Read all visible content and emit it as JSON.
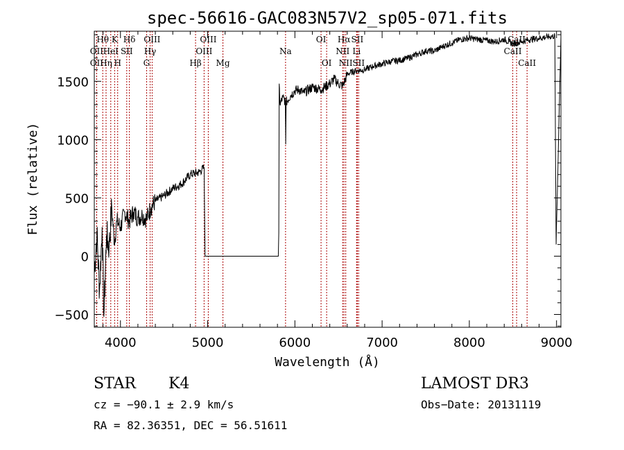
{
  "chart_data": {
    "type": "line",
    "title": "spec-56616-GAC083N57V2_sp05-071.fits",
    "xlabel": "Wavelength (Å)",
    "ylabel": "Flux (relative)",
    "xlim": [
      3700,
      9050
    ],
    "ylim": [
      -610,
      1930
    ],
    "x_ticks": [
      4000,
      5000,
      6000,
      7000,
      8000,
      9000
    ],
    "y_ticks": [
      -500,
      0,
      500,
      1000,
      1500
    ],
    "x_tick_labels": [
      "4000",
      "5000",
      "6000",
      "7000",
      "8000",
      "9000"
    ],
    "y_tick_labels": [
      "−500",
      "0",
      "500",
      "1000",
      "1500"
    ],
    "line_color": "#000000",
    "marker_color": "#aa0000",
    "spectrum_anchors": [
      [
        3700,
        -150
      ],
      [
        3730,
        200
      ],
      [
        3760,
        -300
      ],
      [
        3790,
        250
      ],
      [
        3810,
        -520
      ],
      [
        3840,
        180
      ],
      [
        3870,
        80
      ],
      [
        3900,
        420
      ],
      [
        3930,
        120
      ],
      [
        3960,
        300
      ],
      [
        4000,
        250
      ],
      [
        4050,
        380
      ],
      [
        4100,
        300
      ],
      [
        4150,
        380
      ],
      [
        4200,
        330
      ],
      [
        4250,
        350
      ],
      [
        4300,
        320
      ],
      [
        4350,
        420
      ],
      [
        4400,
        470
      ],
      [
        4500,
        520
      ],
      [
        4600,
        580
      ],
      [
        4700,
        620
      ],
      [
        4800,
        700
      ],
      [
        4900,
        720
      ],
      [
        4960,
        760
      ],
      [
        4970,
        0
      ],
      [
        5500,
        0
      ],
      [
        5810,
        0
      ],
      [
        5815,
        200
      ],
      [
        5820,
        1480
      ],
      [
        5830,
        1300
      ],
      [
        5860,
        1360
      ],
      [
        5890,
        1330
      ],
      [
        5895,
        960
      ],
      [
        5900,
        1320
      ],
      [
        5950,
        1380
      ],
      [
        6000,
        1420
      ],
      [
        6050,
        1430
      ],
      [
        6100,
        1400
      ],
      [
        6200,
        1450
      ],
      [
        6300,
        1430
      ],
      [
        6400,
        1480
      ],
      [
        6450,
        1520
      ],
      [
        6500,
        1480
      ],
      [
        6550,
        1460
      ],
      [
        6600,
        1560
      ],
      [
        6650,
        1580
      ],
      [
        6700,
        1590
      ],
      [
        6800,
        1600
      ],
      [
        6900,
        1630
      ],
      [
        7000,
        1650
      ],
      [
        7100,
        1670
      ],
      [
        7200,
        1680
      ],
      [
        7300,
        1700
      ],
      [
        7400,
        1730
      ],
      [
        7500,
        1760
      ],
      [
        7600,
        1760
      ],
      [
        7700,
        1800
      ],
      [
        7800,
        1830
      ],
      [
        7900,
        1860
      ],
      [
        8000,
        1870
      ],
      [
        8100,
        1860
      ],
      [
        8200,
        1850
      ],
      [
        8300,
        1840
      ],
      [
        8400,
        1860
      ],
      [
        8500,
        1820
      ],
      [
        8600,
        1840
      ],
      [
        8700,
        1860
      ],
      [
        8800,
        1870
      ],
      [
        8900,
        1880
      ],
      [
        8980,
        1890
      ],
      [
        8995,
        100
      ],
      [
        9050,
        1880
      ]
    ],
    "line_markers": [
      {
        "wavelength": 3727,
        "label": "OII",
        "row": 2
      },
      {
        "wavelength": 3727,
        "label": "OII",
        "row": 3
      },
      {
        "wavelength": 3797,
        "label": "Hθ",
        "row": 1
      },
      {
        "wavelength": 3835,
        "label": "Hη",
        "row": 3
      },
      {
        "wavelength": 3889,
        "label": "HeI",
        "row": 2
      },
      {
        "wavelength": 3933,
        "label": "K",
        "row": 1
      },
      {
        "wavelength": 3968,
        "label": "H",
        "row": 3
      },
      {
        "wavelength": 4072,
        "label": "SII",
        "row": 2
      },
      {
        "wavelength": 4102,
        "label": "Hδ",
        "row": 1
      },
      {
        "wavelength": 4300,
        "label": "G",
        "row": 3
      },
      {
        "wavelength": 4340,
        "label": "Hγ",
        "row": 2
      },
      {
        "wavelength": 4363,
        "label": "OIII",
        "row": 1
      },
      {
        "wavelength": 4861,
        "label": "Hβ",
        "row": 3
      },
      {
        "wavelength": 4959,
        "label": "OIII",
        "row": 2
      },
      {
        "wavelength": 5007,
        "label": "OIII",
        "row": 1
      },
      {
        "wavelength": 5175,
        "label": "Mg",
        "row": 3
      },
      {
        "wavelength": 5893,
        "label": "Na",
        "row": 2
      },
      {
        "wavelength": 6300,
        "label": "OI",
        "row": 1
      },
      {
        "wavelength": 6364,
        "label": "OI",
        "row": 3
      },
      {
        "wavelength": 6548,
        "label": "NII",
        "row": 2
      },
      {
        "wavelength": 6563,
        "label": "Hα",
        "row": 1
      },
      {
        "wavelength": 6583,
        "label": "NII",
        "row": 3
      },
      {
        "wavelength": 6707,
        "label": "Li",
        "row": 2
      },
      {
        "wavelength": 6716,
        "label": "SII",
        "row": 1
      },
      {
        "wavelength": 6731,
        "label": "SII",
        "row": 3
      },
      {
        "wavelength": 8498,
        "label": "CaII",
        "row": 2
      },
      {
        "wavelength": 8542,
        "label": "CaII",
        "row": 1
      },
      {
        "wavelength": 8662,
        "label": "CaII",
        "row": 3
      }
    ]
  },
  "info": {
    "object_class": "STAR",
    "subclass": "K4",
    "survey": "LAMOST DR3",
    "redshift": "cz = −90.1 ± 2.9 km/s",
    "obs_date": "Obs−Date: 20131119",
    "coords": "RA =  82.36351, DEC =  56.51611"
  }
}
